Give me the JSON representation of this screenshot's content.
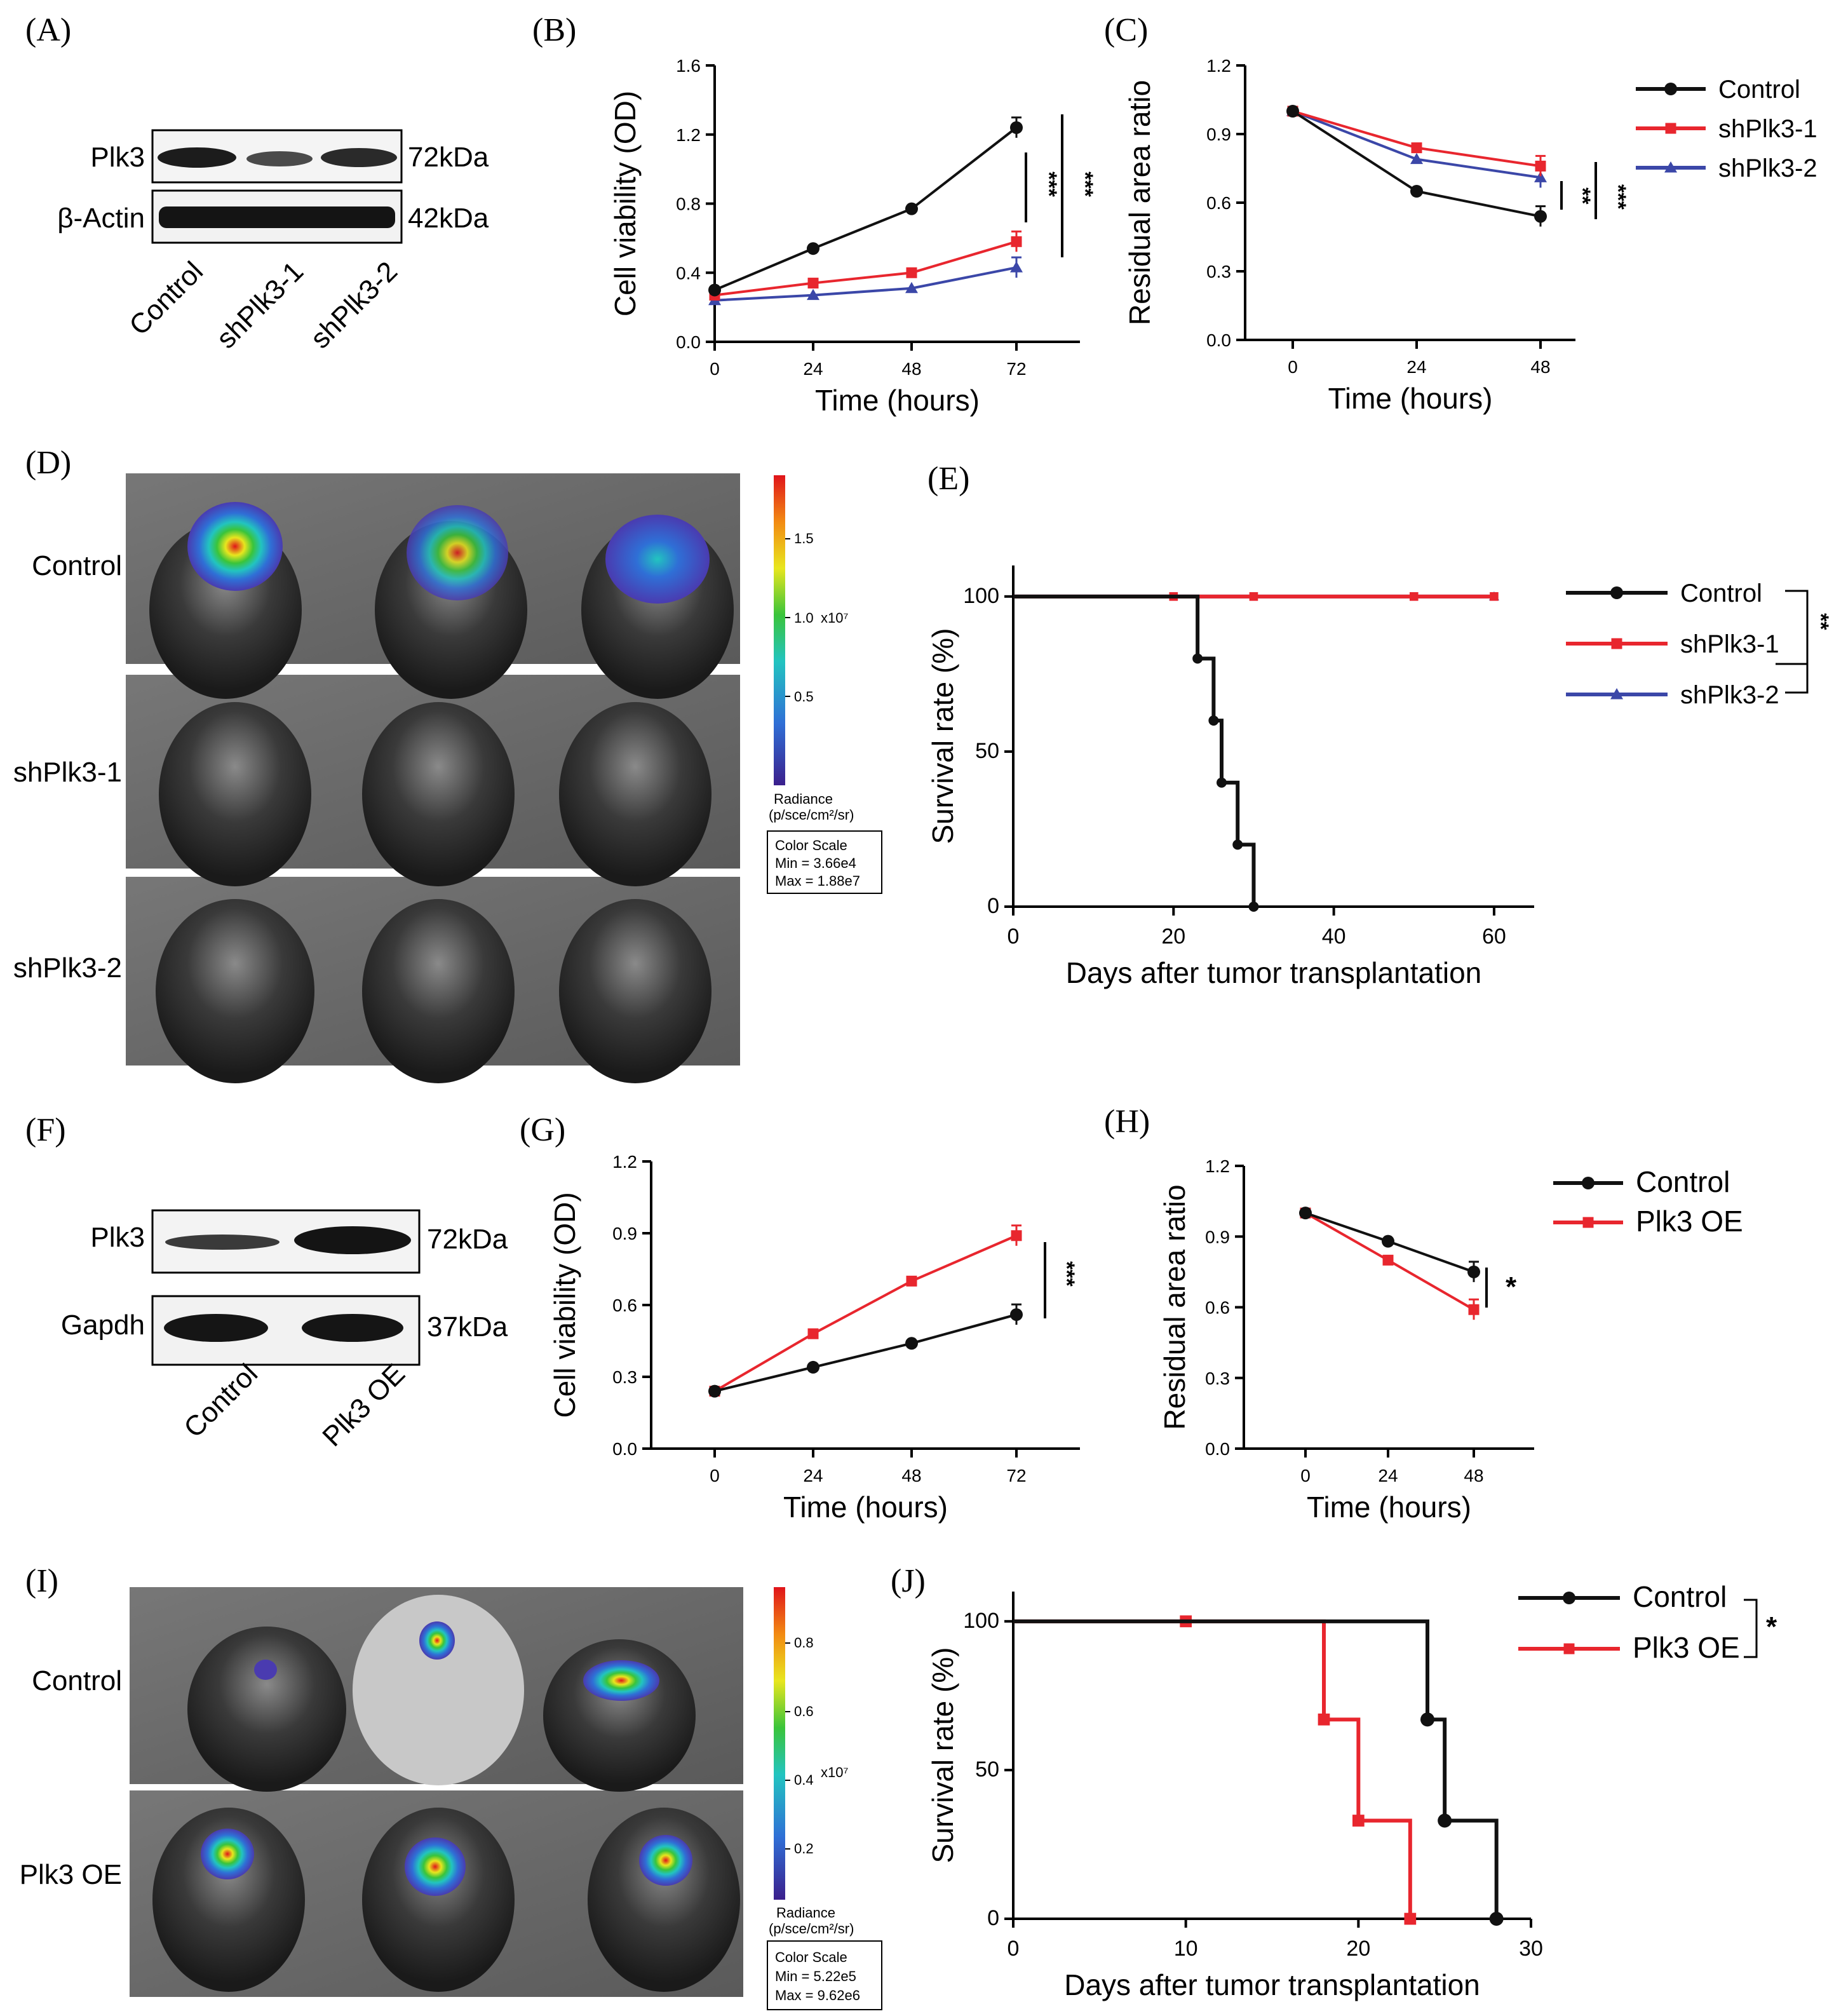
{
  "colors": {
    "control": "#111111",
    "sh1": "#e8262e",
    "sh2": "#3b47a8",
    "oe": "#e8262e"
  },
  "panelA": {
    "label": "(A)",
    "rows": [
      {
        "name": "Plk3",
        "size": "72kDa"
      },
      {
        "name": "β-Actin",
        "size": "42kDa"
      }
    ],
    "lanes": [
      "Control",
      "shPlk3-1",
      "shPlk3-2"
    ]
  },
  "panelF": {
    "label": "(F)",
    "rows": [
      {
        "name": "Plk3",
        "size": "72kDa"
      },
      {
        "name": "Gapdh",
        "size": "37kDa"
      }
    ],
    "lanes": [
      "Control",
      "Plk3 OE"
    ]
  },
  "panelD": {
    "label": "(D)",
    "rows": [
      "Control",
      "shPlk3-1",
      "shPlk3-2"
    ],
    "scale_ticks": [
      "1.5",
      "1.0",
      "0.5"
    ],
    "scale_exp": "x10⁷",
    "radiance": "Radiance",
    "radiance_unit": "(p/sce/cm²/sr)",
    "color_scale": "Color Scale",
    "min": "Min = 3.66e4",
    "max": "Max = 1.88e7"
  },
  "panelI": {
    "label": "(I)",
    "rows": [
      "Control",
      "Plk3 OE"
    ],
    "scale_ticks": [
      "0.8",
      "0.6",
      "0.4",
      "0.2"
    ],
    "scale_exp": "x10⁷",
    "radiance": "Radiance",
    "radiance_unit": "(p/sce/cm²/sr)",
    "color_scale": "Color Scale",
    "min": "Min = 5.22e5",
    "max": "Max = 9.62e6"
  },
  "chart_data": [
    {
      "id": "B",
      "label": "(B)",
      "type": "line",
      "xlabel": "Time (hours)",
      "ylabel": "Cell viability (OD)",
      "x": [
        0,
        24,
        48,
        72
      ],
      "xticks": [
        "0",
        "24",
        "48",
        "72"
      ],
      "ylim": [
        0,
        1.6
      ],
      "yticks": [
        "0.0",
        "0.4",
        "0.8",
        "1.2",
        "1.6"
      ],
      "series": [
        {
          "name": "Control",
          "values": [
            0.3,
            0.54,
            0.77,
            1.24
          ]
        },
        {
          "name": "shPlk3-1",
          "values": [
            0.27,
            0.34,
            0.4,
            0.58
          ]
        },
        {
          "name": "shPlk3-2",
          "values": [
            0.24,
            0.27,
            0.31,
            0.43
          ]
        }
      ],
      "significance": [
        "***",
        "***"
      ]
    },
    {
      "id": "C",
      "label": "(C)",
      "type": "line",
      "xlabel": "Time (hours)",
      "ylabel": "Residual area ratio",
      "x": [
        0,
        24,
        48
      ],
      "xticks": [
        "0",
        "24",
        "48"
      ],
      "ylim": [
        0,
        1.2
      ],
      "yticks": [
        "0.0",
        "0.3",
        "0.6",
        "0.9",
        "1.2"
      ],
      "series": [
        {
          "name": "Control",
          "values": [
            1.0,
            0.65,
            0.54
          ]
        },
        {
          "name": "shPlk3-1",
          "values": [
            1.0,
            0.84,
            0.76
          ]
        },
        {
          "name": "shPlk3-2",
          "values": [
            1.0,
            0.79,
            0.71
          ]
        }
      ],
      "legend": [
        "Control",
        "shPlk3-1",
        "shPlk3-2"
      ],
      "significance": [
        "**",
        "***"
      ]
    },
    {
      "id": "E",
      "label": "(E)",
      "type": "line",
      "xlabel": "Days after tumor transplantation",
      "ylabel": "Survival rate (%)",
      "xlim": [
        0,
        65
      ],
      "xticks": [
        "0",
        "20",
        "40",
        "60"
      ],
      "ylim": [
        0,
        110
      ],
      "yticks": [
        "0",
        "50",
        "100"
      ],
      "series": [
        {
          "name": "Control",
          "x": [
            0,
            23,
            25,
            26,
            28,
            30
          ],
          "values": [
            100,
            80,
            60,
            40,
            20,
            0
          ]
        },
        {
          "name": "shPlk3-1",
          "x": [
            0,
            20,
            30,
            50,
            60
          ],
          "values": [
            100,
            100,
            100,
            100,
            100
          ]
        },
        {
          "name": "shPlk3-2",
          "x": [
            0,
            60
          ],
          "values": [
            100,
            100
          ]
        }
      ],
      "legend": [
        "Control",
        "shPlk3-1",
        "shPlk3-2"
      ],
      "significance": [
        "**"
      ]
    },
    {
      "id": "G",
      "label": "(G)",
      "type": "line",
      "xlabel": "Time (hours)",
      "ylabel": "Cell viability (OD)",
      "x": [
        0,
        24,
        48,
        72
      ],
      "xticks": [
        "0",
        "24",
        "48",
        "72"
      ],
      "ylim": [
        0,
        1.2
      ],
      "yticks": [
        "0.0",
        "0.3",
        "0.6",
        "0.9",
        "1.2"
      ],
      "series": [
        {
          "name": "Control",
          "values": [
            0.24,
            0.34,
            0.44,
            0.56
          ]
        },
        {
          "name": "Plk3 OE",
          "values": [
            0.24,
            0.48,
            0.7,
            0.89
          ]
        }
      ],
      "significance": [
        "***"
      ]
    },
    {
      "id": "H",
      "label": "(H)",
      "type": "line",
      "xlabel": "Time (hours)",
      "ylabel": "Residual area ratio",
      "x": [
        0,
        24,
        48
      ],
      "xticks": [
        "0",
        "24",
        "48"
      ],
      "ylim": [
        0,
        1.2
      ],
      "yticks": [
        "0.0",
        "0.3",
        "0.6",
        "0.9",
        "1.2"
      ],
      "series": [
        {
          "name": "Control",
          "values": [
            1.0,
            0.88,
            0.75
          ]
        },
        {
          "name": "Plk3 OE",
          "values": [
            1.0,
            0.8,
            0.59
          ]
        }
      ],
      "legend": [
        "Control",
        "Plk3 OE"
      ],
      "significance": [
        "*"
      ]
    },
    {
      "id": "J",
      "label": "(J)",
      "type": "line",
      "xlabel": "Days after tumor transplantation",
      "ylabel": "Survival rate (%)",
      "xlim": [
        0,
        30
      ],
      "xticks": [
        "0",
        "10",
        "20",
        "30"
      ],
      "ylim": [
        0,
        110
      ],
      "yticks": [
        "0",
        "50",
        "100"
      ],
      "series": [
        {
          "name": "Control",
          "x": [
            0,
            24,
            25,
            28
          ],
          "values": [
            100,
            67,
            33,
            0
          ]
        },
        {
          "name": "Plk3 OE",
          "x": [
            0,
            10,
            18,
            20,
            23
          ],
          "values": [
            100,
            100,
            67,
            33,
            0
          ]
        }
      ],
      "legend": [
        "Control",
        "Plk3 OE"
      ],
      "significance": [
        "*"
      ]
    }
  ]
}
